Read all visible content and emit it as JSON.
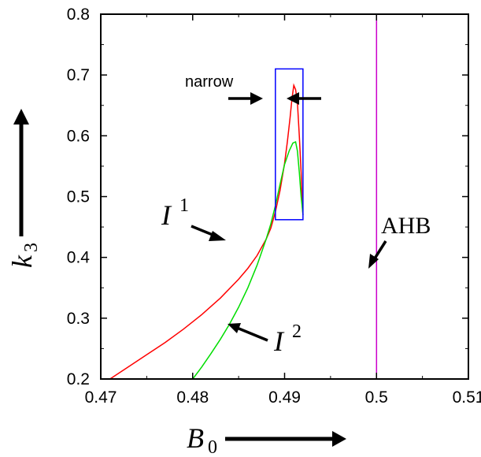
{
  "chart_data": {
    "type": "line",
    "xlim": [
      0.47,
      0.51
    ],
    "ylim": [
      0.2,
      0.8
    ],
    "x_ticks": [
      "0.47",
      "0.48",
      "0.49",
      "0.5",
      "0.51"
    ],
    "y_ticks": [
      "0.2",
      "0.3",
      "0.4",
      "0.5",
      "0.6",
      "0.7",
      "0.8"
    ],
    "xlabel": {
      "symbol": "B",
      "sub": "0"
    },
    "ylabel": {
      "symbol": "k",
      "sub": "3"
    },
    "colors": {
      "I1": "#ff0000",
      "I2": "#00dd00",
      "AHB": "#cc00cc",
      "box": "#0000ff",
      "axis": "#000000"
    },
    "series": [
      {
        "name": "I1",
        "label": {
          "symbol": "I",
          "sup": "1"
        },
        "color": "#ff0000",
        "points": [
          [
            0.471,
            0.2
          ],
          [
            0.473,
            0.22
          ],
          [
            0.475,
            0.24
          ],
          [
            0.477,
            0.26
          ],
          [
            0.479,
            0.282
          ],
          [
            0.481,
            0.306
          ],
          [
            0.483,
            0.333
          ],
          [
            0.485,
            0.364
          ],
          [
            0.486,
            0.382
          ],
          [
            0.487,
            0.403
          ],
          [
            0.488,
            0.43
          ],
          [
            0.4885,
            0.448
          ],
          [
            0.489,
            0.475
          ],
          [
            0.4895,
            0.51
          ],
          [
            0.49,
            0.555
          ],
          [
            0.4903,
            0.59
          ],
          [
            0.4906,
            0.63
          ],
          [
            0.4908,
            0.66
          ],
          [
            0.491,
            0.683
          ],
          [
            0.4912,
            0.676
          ],
          [
            0.4914,
            0.655
          ],
          [
            0.4916,
            0.6
          ],
          [
            0.4918,
            0.54
          ],
          [
            0.4919,
            0.49
          ],
          [
            0.492,
            0.47
          ]
        ]
      },
      {
        "name": "I2",
        "label": {
          "symbol": "I",
          "sup": "2"
        },
        "color": "#00dd00",
        "points": [
          [
            0.48,
            0.2
          ],
          [
            0.481,
            0.22
          ],
          [
            0.482,
            0.242
          ],
          [
            0.483,
            0.265
          ],
          [
            0.484,
            0.29
          ],
          [
            0.485,
            0.318
          ],
          [
            0.486,
            0.35
          ],
          [
            0.487,
            0.387
          ],
          [
            0.488,
            0.43
          ],
          [
            0.4885,
            0.455
          ],
          [
            0.489,
            0.485
          ],
          [
            0.4895,
            0.52
          ],
          [
            0.49,
            0.553
          ],
          [
            0.4905,
            0.575
          ],
          [
            0.4909,
            0.588
          ],
          [
            0.4912,
            0.59
          ],
          [
            0.4914,
            0.575
          ],
          [
            0.4916,
            0.54
          ],
          [
            0.4918,
            0.5
          ],
          [
            0.492,
            0.47
          ]
        ]
      },
      {
        "name": "AHB",
        "label": "AHB",
        "color": "#cc00cc",
        "points": [
          [
            0.5,
            0.2
          ],
          [
            0.5,
            0.8
          ]
        ]
      }
    ],
    "highlight_box": {
      "x": [
        0.489,
        0.492
      ],
      "y": [
        0.462,
        0.71
      ]
    },
    "annotations": {
      "narrow": "narrow",
      "I1": {
        "symbol": "I",
        "sup": "1"
      },
      "I2": {
        "symbol": "I",
        "sup": "2"
      },
      "AHB": "AHB"
    },
    "grid": false
  }
}
